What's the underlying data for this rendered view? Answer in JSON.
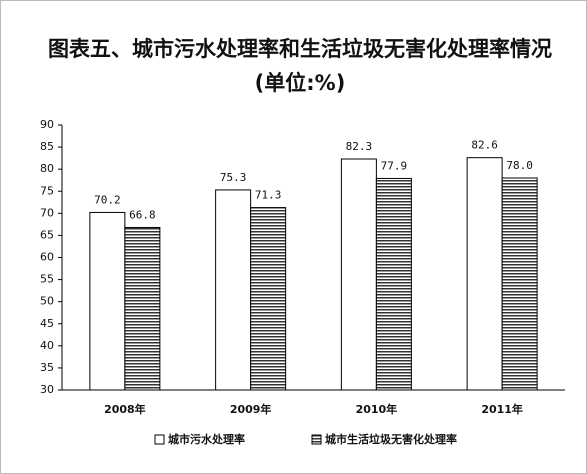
{
  "chart_data": {
    "type": "bar",
    "title": "图表五、城市污水处理率和生活垃圾无害化处理率情况",
    "subtitle": "(单位:%)",
    "categories": [
      "2008年",
      "2009年",
      "2010年",
      "2011年"
    ],
    "series": [
      {
        "name": "城市污水处理率",
        "color": "#ffffff",
        "values": [
          70.2,
          75.3,
          82.3,
          82.6
        ]
      },
      {
        "name": "城市生活垃圾无害化处理率",
        "color": "#333333",
        "hatch": "horizontal",
        "values": [
          66.8,
          71.3,
          77.9,
          78
        ],
        "value_labels": [
          "66.8",
          "71.3",
          "77.9",
          "78.0"
        ]
      }
    ],
    "ylim": [
      30,
      90
    ],
    "yticks": [
      30,
      35,
      40,
      45,
      50,
      55,
      60,
      65,
      70,
      75,
      80,
      85,
      90
    ]
  }
}
